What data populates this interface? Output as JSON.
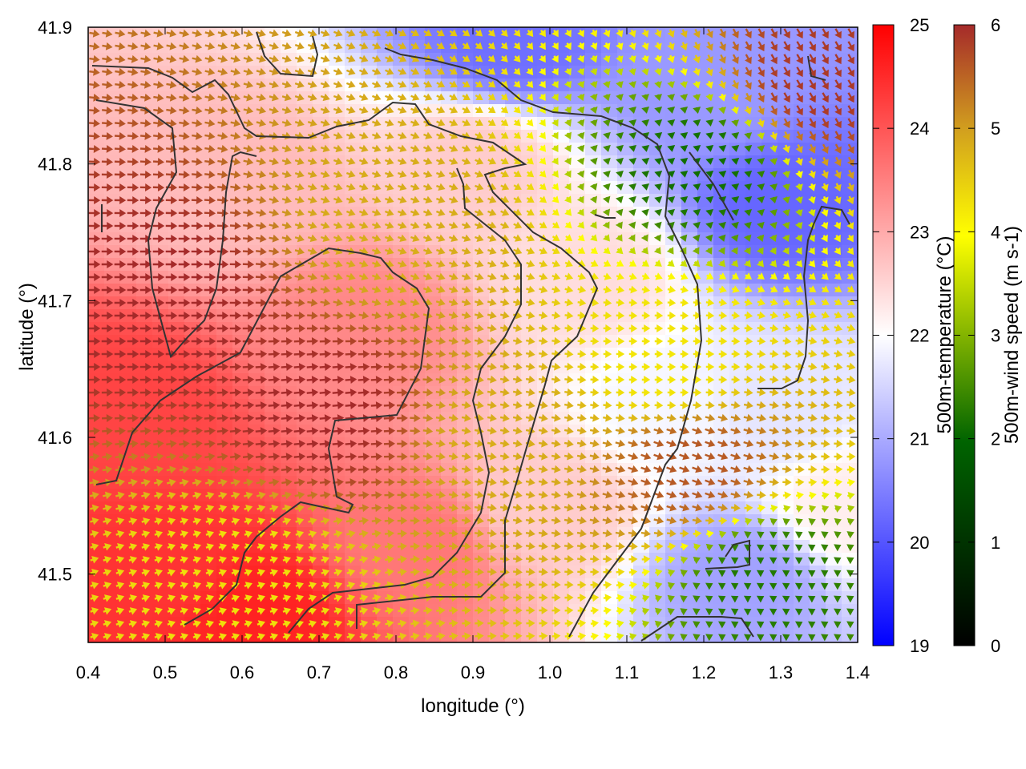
{
  "chart_data": {
    "type": "heatmap",
    "overlay": "wind-vector-field",
    "xlabel": "longitude (°)",
    "ylabel": "latitude (°)",
    "xlim": [
      0.4,
      1.4
    ],
    "ylim": [
      41.45,
      41.9
    ],
    "xticks": [
      "0.4",
      "0.5",
      "0.6",
      "0.7",
      "0.8",
      "0.9",
      "1.0",
      "1.1",
      "1.2",
      "1.3",
      "1.4"
    ],
    "yticks": [
      "41.5",
      "41.6",
      "41.7",
      "41.8",
      "41.9"
    ],
    "grid": false,
    "temperature_colorbar": {
      "label": "500m-temperature (°C)",
      "range": [
        19,
        25
      ],
      "ticks": [
        "19",
        "20",
        "21",
        "22",
        "23",
        "24",
        "25"
      ],
      "colors": [
        "#0000ff",
        "#ffffff",
        "#ff0000"
      ]
    },
    "wind_colorbar": {
      "label": "500m-wind speed (m s-1)",
      "range": [
        0,
        6
      ],
      "ticks": [
        "0",
        "1",
        "2",
        "3",
        "4",
        "5",
        "6"
      ],
      "colors": [
        "#000000",
        "#006400",
        "#ffff00",
        "#d2a01e",
        "#a52a2a"
      ]
    },
    "temperature_field": [
      {
        "lon": 0.45,
        "lat": 41.62,
        "value": 24.2
      },
      {
        "lon": 0.5,
        "lat": 41.5,
        "value": 24.4
      },
      {
        "lon": 0.62,
        "lat": 41.47,
        "value": 24.6
      },
      {
        "lon": 0.6,
        "lat": 41.78,
        "value": 22.8
      },
      {
        "lon": 0.75,
        "lat": 41.68,
        "value": 23.4
      },
      {
        "lon": 0.82,
        "lat": 41.52,
        "value": 23.6
      },
      {
        "lon": 0.9,
        "lat": 41.8,
        "value": 22.6
      },
      {
        "lon": 1.0,
        "lat": 41.55,
        "value": 22.6
      },
      {
        "lon": 1.05,
        "lat": 41.72,
        "value": 22.4
      },
      {
        "lon": 0.95,
        "lat": 41.89,
        "value": 20.3
      },
      {
        "lon": 1.15,
        "lat": 41.62,
        "value": 21.9
      },
      {
        "lon": 1.2,
        "lat": 41.85,
        "value": 20.8
      },
      {
        "lon": 1.3,
        "lat": 41.77,
        "value": 20.2
      },
      {
        "lon": 1.25,
        "lat": 41.5,
        "value": 20.9
      },
      {
        "lon": 1.3,
        "lat": 41.62,
        "value": 21.7
      },
      {
        "lon": 1.38,
        "lat": 41.55,
        "value": 22.2
      }
    ],
    "wind_field": [
      {
        "lon": 0.5,
        "lat": 41.7,
        "speed": 6.0,
        "dir_deg": 180
      },
      {
        "lon": 0.7,
        "lat": 41.62,
        "speed": 6.0,
        "dir_deg": 175
      },
      {
        "lon": 0.8,
        "lat": 41.75,
        "speed": 4.3,
        "dir_deg": 200
      },
      {
        "lon": 0.6,
        "lat": 41.5,
        "speed": 3.5,
        "dir_deg": 160
      },
      {
        "lon": 0.95,
        "lat": 41.6,
        "speed": 4.3,
        "dir_deg": 190
      },
      {
        "lon": 1.15,
        "lat": 41.65,
        "speed": 3.4,
        "dir_deg": 180
      },
      {
        "lon": 1.2,
        "lat": 41.8,
        "speed": 1.6,
        "dir_deg": 260
      },
      {
        "lon": 1.28,
        "lat": 41.5,
        "speed": 1.7,
        "dir_deg": 150
      },
      {
        "lon": 1.35,
        "lat": 41.86,
        "speed": 5.8,
        "dir_deg": 240
      },
      {
        "lon": 1.18,
        "lat": 41.58,
        "speed": 5.4,
        "dir_deg": 200
      }
    ]
  }
}
